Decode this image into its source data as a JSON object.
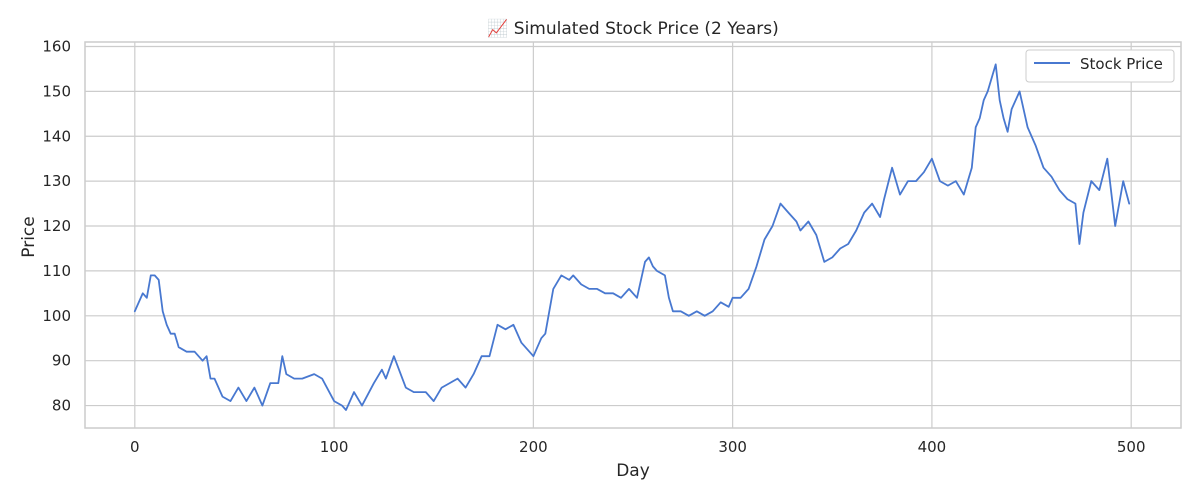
{
  "chart_data": {
    "type": "line",
    "title": "📈 Simulated Stock Price (2 Years)",
    "xlabel": "Day",
    "ylabel": "Price",
    "xlim": [
      -25,
      525
    ],
    "ylim": [
      75,
      161
    ],
    "xticks": [
      0,
      100,
      200,
      300,
      400,
      500
    ],
    "yticks": [
      80,
      90,
      100,
      110,
      120,
      130,
      140,
      150,
      160
    ],
    "grid": true,
    "legend_position": "top-right",
    "series": [
      {
        "name": "Stock Price",
        "color": "#4878d0",
        "x": [
          0,
          4,
          6,
          8,
          10,
          12,
          14,
          16,
          18,
          20,
          22,
          26,
          30,
          32,
          34,
          36,
          38,
          40,
          44,
          48,
          52,
          56,
          60,
          64,
          68,
          72,
          74,
          76,
          80,
          84,
          90,
          94,
          100,
          104,
          106,
          110,
          114,
          120,
          124,
          126,
          130,
          136,
          140,
          146,
          150,
          154,
          158,
          162,
          166,
          170,
          174,
          178,
          182,
          186,
          190,
          194,
          196,
          200,
          204,
          206,
          210,
          214,
          218,
          220,
          224,
          228,
          232,
          236,
          240,
          244,
          248,
          252,
          256,
          258,
          260,
          262,
          266,
          268,
          270,
          274,
          278,
          282,
          286,
          290,
          294,
          298,
          300,
          304,
          308,
          312,
          316,
          320,
          324,
          328,
          332,
          334,
          338,
          342,
          346,
          350,
          354,
          358,
          362,
          366,
          370,
          374,
          376,
          380,
          384,
          388,
          392,
          396,
          400,
          404,
          408,
          412,
          416,
          418,
          420,
          422,
          424,
          426,
          428,
          430,
          432,
          434,
          436,
          438,
          440,
          444,
          448,
          452,
          456,
          460,
          464,
          468,
          472,
          474,
          476,
          480,
          484,
          488,
          492,
          496,
          499
        ],
        "y": [
          101,
          105,
          104,
          109,
          109,
          108,
          101,
          98,
          96,
          96,
          93,
          92,
          92,
          91,
          90,
          91,
          86,
          86,
          82,
          81,
          84,
          81,
          84,
          80,
          85,
          85,
          91,
          87,
          86,
          86,
          87,
          86,
          81,
          80,
          79,
          83,
          80,
          85,
          88,
          86,
          91,
          84,
          83,
          83,
          81,
          84,
          85,
          86,
          84,
          87,
          91,
          91,
          98,
          97,
          98,
          94,
          93,
          91,
          95,
          96,
          106,
          109,
          108,
          109,
          107,
          106,
          106,
          105,
          105,
          104,
          106,
          104,
          112,
          113,
          111,
          110,
          109,
          104,
          101,
          101,
          100,
          101,
          100,
          101,
          103,
          102,
          104,
          104,
          106,
          111,
          117,
          120,
          125,
          123,
          121,
          119,
          121,
          118,
          112,
          113,
          115,
          116,
          119,
          123,
          125,
          122,
          126,
          133,
          127,
          130,
          130,
          132,
          135,
          130,
          129,
          130,
          127,
          130,
          133,
          142,
          144,
          148,
          150,
          153,
          156,
          148,
          144,
          141,
          146,
          150,
          142,
          138,
          133,
          131,
          128,
          126,
          125,
          116,
          123,
          130,
          128,
          135,
          120,
          130,
          125
        ]
      }
    ]
  }
}
